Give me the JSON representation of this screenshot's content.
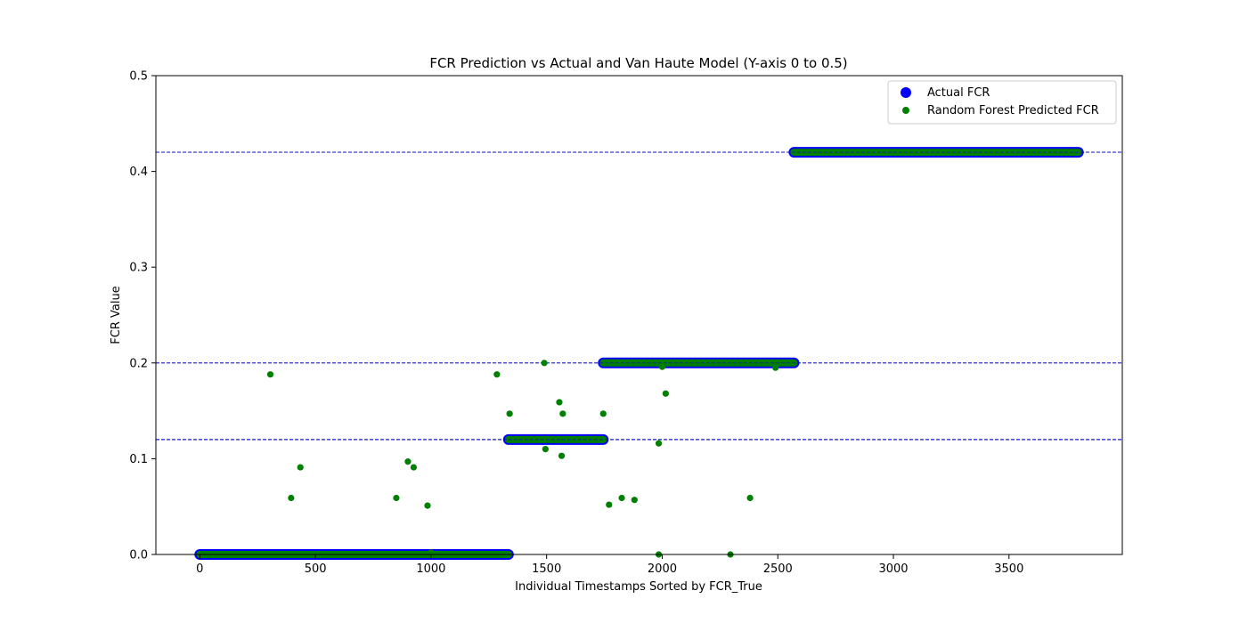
{
  "chart_data": {
    "type": "scatter",
    "title": "FCR Prediction vs Actual and Van Haute Model (Y-axis 0 to 0.5)",
    "xlabel": "Individual Timestamps Sorted by FCR_True",
    "ylabel": "FCR Value",
    "xlim": [
      -190,
      3990
    ],
    "ylim": [
      0,
      0.5
    ],
    "x_ticks": [
      0,
      500,
      1000,
      1500,
      2000,
      2500,
      3000,
      3500
    ],
    "y_ticks": [
      0.0,
      0.1,
      0.2,
      0.3,
      0.4,
      0.5
    ],
    "x_tick_labels": [
      "0",
      "500",
      "1000",
      "1500",
      "2000",
      "2500",
      "3000",
      "3500"
    ],
    "y_tick_labels": [
      "0.0",
      "0.1",
      "0.2",
      "0.3",
      "0.4",
      "0.5"
    ],
    "grid": false,
    "legend_position": "upper right",
    "reference_lines": [
      {
        "y": 0.12,
        "style": "dashed",
        "color": "#0000cc"
      },
      {
        "y": 0.2,
        "style": "dashed",
        "color": "#0000cc"
      },
      {
        "y": 0.42,
        "style": "dashed",
        "color": "#0000cc"
      }
    ],
    "series": [
      {
        "name": "Actual FCR",
        "color": "#0000ff",
        "marker": "circle",
        "segments": [
          {
            "x_start": 0,
            "x_end": 1335,
            "y": 0.0
          },
          {
            "x_start": 1335,
            "x_end": 1745,
            "y": 0.12
          },
          {
            "x_start": 1745,
            "x_end": 2570,
            "y": 0.2
          },
          {
            "x_start": 2570,
            "x_end": 3800,
            "y": 0.42
          }
        ]
      },
      {
        "name": "Random Forest Predicted FCR",
        "color": "#008000",
        "marker": "circle",
        "segments": [
          {
            "x_start": 0,
            "x_end": 1335,
            "y": 0.0
          },
          {
            "x_start": 1335,
            "x_end": 1745,
            "y": 0.12
          },
          {
            "x_start": 1745,
            "x_end": 2570,
            "y": 0.2
          },
          {
            "x_start": 2570,
            "x_end": 3800,
            "y": 0.42
          }
        ],
        "outliers": [
          {
            "x": 305,
            "y": 0.188
          },
          {
            "x": 395,
            "y": 0.059
          },
          {
            "x": 435,
            "y": 0.091
          },
          {
            "x": 850,
            "y": 0.059
          },
          {
            "x": 900,
            "y": 0.097
          },
          {
            "x": 925,
            "y": 0.091
          },
          {
            "x": 985,
            "y": 0.051
          },
          {
            "x": 1000,
            "y": 0.002
          },
          {
            "x": 1285,
            "y": 0.188
          },
          {
            "x": 1340,
            "y": 0.147
          },
          {
            "x": 1490,
            "y": 0.2
          },
          {
            "x": 1495,
            "y": 0.11
          },
          {
            "x": 1555,
            "y": 0.159
          },
          {
            "x": 1565,
            "y": 0.103
          },
          {
            "x": 1570,
            "y": 0.147
          },
          {
            "x": 1745,
            "y": 0.147
          },
          {
            "x": 1770,
            "y": 0.052
          },
          {
            "x": 1825,
            "y": 0.059
          },
          {
            "x": 1880,
            "y": 0.057
          },
          {
            "x": 1985,
            "y": 0.116
          },
          {
            "x": 1985,
            "y": 0.0
          },
          {
            "x": 2000,
            "y": 0.196
          },
          {
            "x": 2015,
            "y": 0.168
          },
          {
            "x": 2295,
            "y": 0.0
          },
          {
            "x": 2380,
            "y": 0.059
          },
          {
            "x": 2490,
            "y": 0.195
          }
        ]
      }
    ]
  }
}
